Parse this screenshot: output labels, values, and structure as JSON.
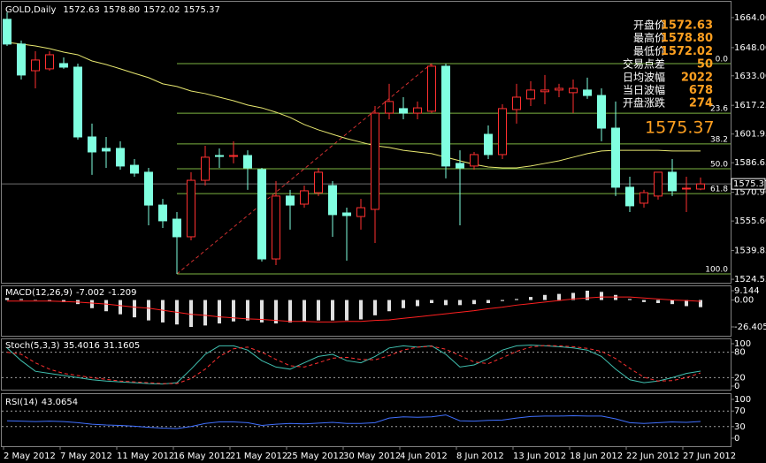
{
  "chart_data": [
    {
      "type": "candlestick",
      "title": "GOLD,Daily",
      "categories": [
        "2 May 2012",
        null,
        null,
        null,
        "7 May 2012",
        null,
        null,
        null,
        "11 May 2012",
        null,
        null,
        null,
        "16 May 2012",
        null,
        null,
        null,
        "21 May 2012",
        null,
        null,
        null,
        "25 May 2012",
        null,
        null,
        null,
        "30 May 2012",
        null,
        null,
        null,
        "4 Jun 2012",
        null,
        null,
        null,
        "8 Jun 2012",
        null,
        null,
        null,
        "13 Jun 2012",
        null,
        null,
        null,
        "18 Jun 2012",
        null,
        null,
        null,
        "22 Jun 2012",
        null,
        null,
        null,
        "27 Jun 2012",
        null
      ],
      "open": [
        1663.1,
        1649.9,
        1635.7,
        1636.7,
        1639.5,
        1637.6,
        1600.4,
        1594.3,
        1594.3,
        1585.3,
        1581.6,
        1564.1,
        1556.6,
        1547.2,
        1577.3,
        1590.5,
        1590.5,
        1590.5,
        1583.0,
        1535.4,
        1568.9,
        1564.6,
        1570.7,
        1574.5,
        1559.9,
        1558.0,
        1561.8,
        1613.1,
        1615.5,
        1613.1,
        1614.1,
        1638.1,
        1586.3,
        1584.9,
        1601.8,
        1591.0,
        1615.0,
        1620.7,
        1624.5,
        1625.4,
        1624.0,
        1625.4,
        1622.5,
        1605.1,
        1573.6,
        1565.1,
        1568.9,
        1581.6,
        1573.1,
        1572.63
      ],
      "high": [
        1666.8,
        1651.8,
        1646.1,
        1646.1,
        1642.8,
        1639.5,
        1607.5,
        1600.4,
        1598.1,
        1588.6,
        1583.9,
        1567.4,
        1560.4,
        1581.6,
        1595.7,
        1594.3,
        1598.1,
        1593.3,
        1583.9,
        1576.9,
        1572.2,
        1574.5,
        1583.9,
        1576.9,
        1562.7,
        1567.4,
        1616.9,
        1628.7,
        1621.6,
        1619.3,
        1639.5,
        1639.5,
        1593.3,
        1592.4,
        1606.5,
        1617.8,
        1628.7,
        1630.1,
        1633.4,
        1628.7,
        1631.0,
        1632.0,
        1626.3,
        1619.3,
        1579.2,
        1572.2,
        1581.6,
        1588.6,
        1579.2,
        1578.8
      ],
      "low": [
        1648.9,
        1631.0,
        1626.3,
        1635.7,
        1636.7,
        1599.0,
        1580.2,
        1583.9,
        1583.0,
        1579.2,
        1553.3,
        1551.9,
        1527.4,
        1545.3,
        1574.5,
        1583.9,
        1586.3,
        1572.2,
        1534.0,
        1532.1,
        1551.0,
        1562.7,
        1568.9,
        1547.2,
        1534.5,
        1551.0,
        1543.9,
        1609.8,
        1609.8,
        1609.8,
        1613.1,
        1578.3,
        1553.3,
        1583.0,
        1588.6,
        1588.6,
        1607.5,
        1616.9,
        1617.8,
        1621.6,
        1613.1,
        1620.7,
        1598.1,
        1568.9,
        1560.4,
        1562.7,
        1567.0,
        1568.9,
        1560.4,
        1572.02
      ],
      "close": [
        1649.9,
        1633.4,
        1641.4,
        1644.2,
        1637.6,
        1600.4,
        1592.4,
        1592.9,
        1584.9,
        1581.1,
        1564.1,
        1555.7,
        1547.2,
        1577.3,
        1589.6,
        1590.0,
        1590.5,
        1583.9,
        1535.4,
        1568.9,
        1564.1,
        1571.7,
        1581.6,
        1559.0,
        1558.5,
        1562.7,
        1613.1,
        1619.3,
        1613.1,
        1615.9,
        1638.1,
        1584.9,
        1583.9,
        1591.0,
        1591.0,
        1615.5,
        1621.6,
        1625.4,
        1625.4,
        1626.3,
        1626.3,
        1622.5,
        1605.1,
        1573.6,
        1563.7,
        1570.7,
        1581.6,
        1571.7,
        1573.1,
        1575.37
      ],
      "color_up": "#ff3030",
      "color_down": "#80ffe0",
      "ylim": [
        1522.7,
        1671.5
      ],
      "yticks": [
        {
          "value": 1664,
          "label": "1664.00"
        },
        {
          "value": 1648,
          "label": "1648.00"
        },
        {
          "value": 1633,
          "label": "1633.00"
        },
        {
          "value": 1617.25,
          "label": "1617.25"
        },
        {
          "value": 1601.95,
          "label": "1601.95"
        },
        {
          "value": 1586.65,
          "label": "1586.65"
        },
        {
          "value": 1570.9,
          "label": "1570.90"
        },
        {
          "value": 1555.6,
          "label": "1555.60"
        },
        {
          "value": 1539.85,
          "label": "1539.85"
        },
        {
          "value": 1524.55,
          "label": "1524.55"
        }
      ],
      "ma": {
        "color": "#e8e870",
        "values": [
          1650.8,
          1649.9,
          1648.9,
          1647.5,
          1645.6,
          1644.2,
          1640.9,
          1639.0,
          1636.7,
          1634.3,
          1632.0,
          1628.7,
          1627.3,
          1624.9,
          1623.5,
          1621.6,
          1619.7,
          1617.4,
          1615.9,
          1613.6,
          1610.8,
          1607.0,
          1604.2,
          1601.8,
          1599.5,
          1597.6,
          1595.7,
          1594.8,
          1593.3,
          1592.4,
          1591.5,
          1589.6,
          1587.7,
          1585.8,
          1584.4,
          1583.9,
          1583.9,
          1584.9,
          1586.3,
          1587.7,
          1589.6,
          1591.5,
          1592.9,
          1593.3,
          1593.3,
          1593.3,
          1593.3,
          1592.9,
          1592.9,
          1592.9
        ]
      },
      "fib": {
        "color": "#7cb342",
        "label_color": "#e8e870",
        "line_color": "#d03030",
        "levels": [
          {
            "value": 0,
            "label": "0.0"
          },
          23.6,
          38.2,
          {
            "value": 50,
            "label": "50.0"
          },
          61.8,
          {
            "value": 100,
            "label": "100.0"
          }
        ]
      },
      "info": [
        {
          "label": "开盘价",
          "value": 1572.63
        },
        {
          "label": "最高价",
          "value": {
            "value": 1578.8,
            "label": "1578.80"
          }
        },
        {
          "label": "最低价",
          "value": 1572.02
        },
        {
          "label": "交易点差",
          "value": 50
        },
        {
          "label": "日均波幅",
          "value": 2022
        },
        {
          "label": "当日波幅",
          "value": 678
        },
        {
          "label": "开盘涨跌",
          "value": 274
        }
      ]
    },
    {
      "type": "macd",
      "title": "MACD(12,26,9)",
      "histogram": [
        2,
        1,
        0,
        -1,
        -2,
        -4,
        -8,
        -11,
        -14,
        -17,
        -20,
        -22,
        -24,
        -26.405,
        -25,
        -23,
        -21,
        -20,
        -22,
        -23,
        -22,
        -21,
        -20,
        -20,
        -20,
        -19,
        -15,
        -11,
        -8,
        -6,
        -3,
        -5,
        -5,
        -4,
        -3,
        -1,
        1,
        3,
        5,
        6,
        7,
        9.144,
        8,
        5,
        1,
        -2,
        -3,
        -4,
        -6,
        -7.002
      ],
      "signal": [
        -1,
        -1,
        -1,
        -1,
        -1.5,
        -2,
        -3,
        -4,
        -5.5,
        -7,
        -8,
        -10,
        -12,
        -14,
        -15,
        -16.5,
        -17.5,
        -18.5,
        -19,
        -20,
        -21,
        -21,
        -21.5,
        -21.5,
        -21,
        -21,
        -20,
        -19.5,
        -18,
        -16.5,
        -15,
        -13.5,
        -12,
        -10.5,
        -8.5,
        -7,
        -5,
        -3.5,
        -2,
        -0.5,
        1,
        2,
        3,
        3,
        3,
        2,
        1,
        0,
        -0.5,
        -1.209
      ],
      "color": "#e0e0e0",
      "signal_color": "#ff2020",
      "ylim": [
        -26.405,
        9.144
      ],
      "yticks": [
        9.144,
        {
          "value": 0,
          "label": "0.00"
        },
        -26.405
      ]
    },
    {
      "type": "stoch",
      "title": "Stoch(5,3,3)",
      "series": [
        {
          "color": "#40c0b0",
          "values": [
            90,
            60,
            35,
            30,
            25,
            20,
            15,
            12,
            10,
            8,
            6,
            5,
            8,
            40,
            75,
            95,
            95,
            85,
            60,
            45,
            40,
            55,
            70,
            75,
            60,
            55,
            70,
            90,
            95,
            92,
            95,
            75,
            45,
            50,
            65,
            85,
            95,
            97,
            95,
            93,
            90,
            85,
            70,
            40,
            15,
            8,
            12,
            20,
            30,
            35.4016
          ]
        },
        {
          "color": "#ff3030",
          "dashed": true,
          "values": [
            80,
            75,
            55,
            40,
            30,
            25,
            20,
            16,
            12,
            10,
            8,
            6,
            6,
            18,
            40,
            70,
            88,
            92,
            80,
            63,
            48,
            45,
            55,
            66,
            68,
            63,
            62,
            72,
            85,
            92,
            94,
            87,
            72,
            57,
            53,
            67,
            82,
            92,
            96,
            95,
            93,
            89,
            82,
            65,
            42,
            21,
            12,
            13,
            20,
            31.1605
          ]
        }
      ],
      "ylim": [
        0,
        100
      ],
      "yticks": [
        100,
        80,
        20,
        0
      ],
      "level_lines": true
    },
    {
      "type": "rsi",
      "title": "RSI(14)",
      "color": "#4070ff",
      "values": [
        45,
        44,
        43,
        44,
        43,
        40,
        36,
        34,
        33,
        31,
        28,
        26,
        25,
        30,
        38,
        42,
        42,
        40,
        33,
        36,
        38,
        37,
        39,
        41,
        38,
        38,
        40,
        52,
        55,
        54,
        55,
        60,
        45,
        44,
        46,
        47,
        52,
        56,
        57,
        57,
        58,
        57,
        57,
        50,
        40,
        38,
        40,
        42,
        41,
        43.0654
      ],
      "ylim": [
        0,
        100
      ],
      "yticks": [
        100,
        70,
        30,
        0
      ],
      "level_lines": true
    }
  ]
}
